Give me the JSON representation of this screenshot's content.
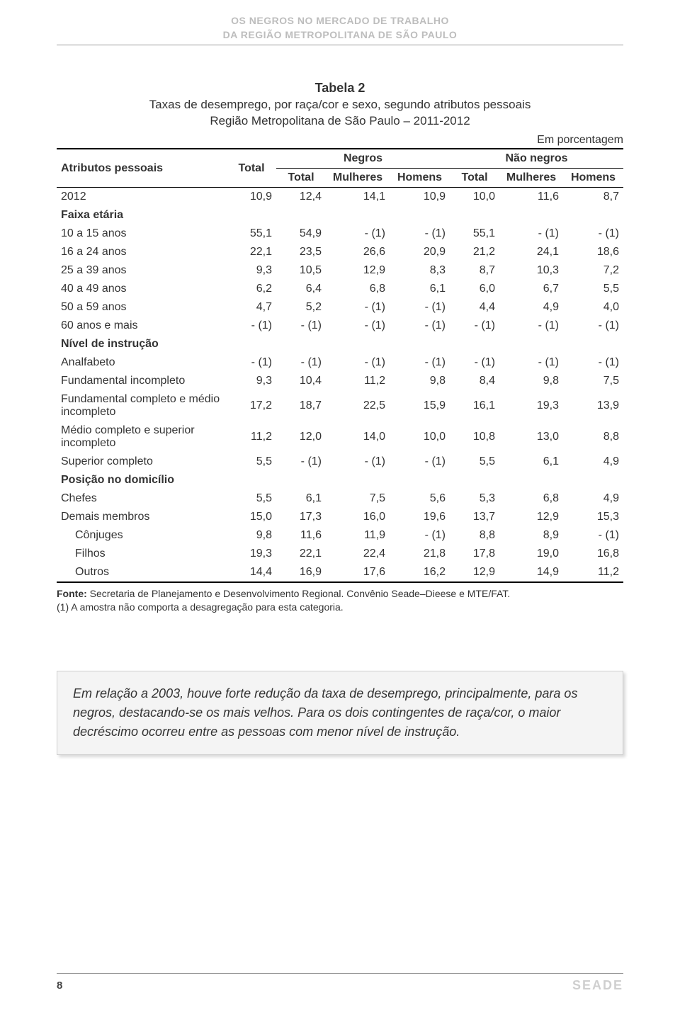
{
  "header": {
    "line1": "OS NEGROS NO MERCADO DE TRABALHO",
    "line2": "DA REGIÃO METROPOLITANA DE SÃO PAULO"
  },
  "table": {
    "name": "Tabela 2",
    "subtitle1": "Taxas de desemprego, por raça/cor e sexo, segundo atributos pessoais",
    "subtitle2": "Região Metropolitana de São Paulo – 2011-2012",
    "unit": "Em porcentagem",
    "col_rowlabel": "Atributos pessoais",
    "col_total": "Total",
    "col_group1": "Negros",
    "col_group2": "Não negros",
    "col_sub_total": "Total",
    "col_sub_mulheres": "Mulheres",
    "col_sub_homens": "Homens",
    "rows": [
      {
        "type": "data",
        "label": "2012",
        "cells": [
          "10,9",
          "12,4",
          "14,1",
          "10,9",
          "10,0",
          "11,6",
          "8,7"
        ]
      },
      {
        "type": "section",
        "label": "Faixa etária",
        "cells": [
          "",
          "",
          "",
          "",
          "",
          "",
          ""
        ]
      },
      {
        "type": "data",
        "label": "10 a 15 anos",
        "cells": [
          "55,1",
          "54,9",
          "- (1)",
          "- (1)",
          "55,1",
          "- (1)",
          "- (1)"
        ]
      },
      {
        "type": "data",
        "label": "16 a 24 anos",
        "cells": [
          "22,1",
          "23,5",
          "26,6",
          "20,9",
          "21,2",
          "24,1",
          "18,6"
        ]
      },
      {
        "type": "data",
        "label": "25 a 39 anos",
        "cells": [
          "9,3",
          "10,5",
          "12,9",
          "8,3",
          "8,7",
          "10,3",
          "7,2"
        ]
      },
      {
        "type": "data",
        "label": "40 a 49 anos",
        "cells": [
          "6,2",
          "6,4",
          "6,8",
          "6,1",
          "6,0",
          "6,7",
          "5,5"
        ]
      },
      {
        "type": "data",
        "label": "50 a 59 anos",
        "cells": [
          "4,7",
          "5,2",
          "- (1)",
          "- (1)",
          "4,4",
          "4,9",
          "4,0"
        ]
      },
      {
        "type": "data",
        "label": "60 anos e mais",
        "cells": [
          "- (1)",
          "- (1)",
          "- (1)",
          "- (1)",
          "- (1)",
          "- (1)",
          "- (1)"
        ]
      },
      {
        "type": "section",
        "label": "Nível de instrução",
        "cells": [
          "",
          "",
          "",
          "",
          "",
          "",
          ""
        ]
      },
      {
        "type": "data",
        "label": "Analfabeto",
        "cells": [
          "- (1)",
          "- (1)",
          "- (1)",
          "- (1)",
          "- (1)",
          "- (1)",
          "- (1)"
        ]
      },
      {
        "type": "data",
        "label": "Fundamental incompleto",
        "cells": [
          "9,3",
          "10,4",
          "11,2",
          "9,8",
          "8,4",
          "9,8",
          "7,5"
        ]
      },
      {
        "type": "data",
        "label": "Fundamental completo e médio incompleto",
        "cells": [
          "17,2",
          "18,7",
          "22,5",
          "15,9",
          "16,1",
          "19,3",
          "13,9"
        ]
      },
      {
        "type": "data",
        "label": "Médio completo e superior incompleto",
        "cells": [
          "11,2",
          "12,0",
          "14,0",
          "10,0",
          "10,8",
          "13,0",
          "8,8"
        ]
      },
      {
        "type": "data",
        "label": "Superior completo",
        "cells": [
          "5,5",
          "- (1)",
          "- (1)",
          "- (1)",
          "5,5",
          "6,1",
          "4,9"
        ]
      },
      {
        "type": "section",
        "label": "Posição no domicílio",
        "cells": [
          "",
          "",
          "",
          "",
          "",
          "",
          ""
        ]
      },
      {
        "type": "data",
        "label": "Chefes",
        "cells": [
          "5,5",
          "6,1",
          "7,5",
          "5,6",
          "5,3",
          "6,8",
          "4,9"
        ]
      },
      {
        "type": "data",
        "label": "Demais membros",
        "cells": [
          "15,0",
          "17,3",
          "16,0",
          "19,6",
          "13,7",
          "12,9",
          "15,3"
        ]
      },
      {
        "type": "indent",
        "label": "Cônjuges",
        "cells": [
          "9,8",
          "11,6",
          "11,9",
          "- (1)",
          "8,8",
          "8,9",
          "- (1)"
        ]
      },
      {
        "type": "indent",
        "label": "Filhos",
        "cells": [
          "19,3",
          "22,1",
          "22,4",
          "21,8",
          "17,8",
          "19,0",
          "16,8"
        ]
      },
      {
        "type": "indent",
        "label": "Outros",
        "cells": [
          "14,4",
          "16,9",
          "17,6",
          "16,2",
          "12,9",
          "14,9",
          "11,2"
        ],
        "last": true
      }
    ],
    "footnote_bold": "Fonte:",
    "footnote1": " Secretaria de Planejamento e Desenvolvimento Regional. Convênio Seade–Dieese e MTE/FAT.",
    "footnote2": "(1) A amostra não comporta a desagregação para esta categoria."
  },
  "callout": "Em relação a 2003, houve forte redução da taxa de desemprego, principalmente, para os negros, destacando-se os mais velhos. Para os dois contingentes de raça/cor, o maior decréscimo ocorreu entre as pessoas com menor nível de instrução.",
  "footer": {
    "page_number": "8",
    "brand": "SEADE"
  },
  "colors": {
    "header_text": "#bdbdbd",
    "rule": "#999999",
    "callout_bg": "#f4f4f4",
    "callout_border": "#cfcfcf",
    "brand": "#cfcfcf",
    "text": "#333333"
  }
}
